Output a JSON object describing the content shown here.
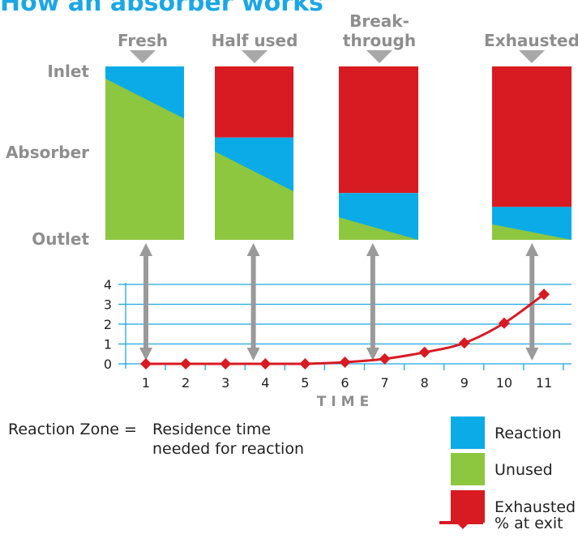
{
  "title": "How an absorber works",
  "stages": [
    {
      "label_lines": [
        "Fresh"
      ],
      "exhausted": 0,
      "reaction_left": 0.07,
      "reaction_right": 0.3
    },
    {
      "label_lines": [
        "Half used"
      ],
      "exhausted": 0.41,
      "reaction_left": 0.49,
      "reaction_right": 0.72
    },
    {
      "label_lines": [
        "Break-",
        "through"
      ],
      "exhausted": 0.73,
      "reaction_left": 0.87,
      "reaction_right": 1.0
    },
    {
      "label_lines": [
        "Exhausted"
      ],
      "exhausted": 0.81,
      "reaction_left": 0.91,
      "reaction_right": 1.0
    }
  ],
  "rows": {
    "inlet": "Inlet",
    "absorber": "Absorber",
    "outlet": "Outlet"
  },
  "colors": {
    "reaction": "#0aabe6",
    "unused": "#8dc63f",
    "exhausted": "#d81a22",
    "line": "#d81a22",
    "grid": "#1ba7e6",
    "arrow": "#9a9a9a",
    "title": "#1ba7e6"
  },
  "chart_data": {
    "type": "line",
    "x": [
      1,
      2,
      3,
      4,
      5,
      6,
      7,
      8,
      9,
      10,
      11
    ],
    "series": [
      {
        "name": "% at exit",
        "values": [
          0,
          0,
          0,
          0,
          0,
          0.08,
          0.25,
          0.58,
          1.05,
          2.05,
          3.5
        ]
      }
    ],
    "xlabel": "TIME",
    "ylabel": "",
    "x_ticks": [
      "1",
      "2",
      "3",
      "4",
      "5",
      "6",
      "7",
      "8",
      "9",
      "10",
      "11"
    ],
    "y_ticks": [
      "0",
      "1",
      "2",
      "3",
      "4"
    ],
    "ylim": [
      0,
      4
    ],
    "grid": true,
    "marker": "diamond",
    "arrows_to_time": [
      1,
      3.7,
      6.7,
      10.7
    ]
  },
  "caption": {
    "left": "Reaction Zone =",
    "right_line1": "Residence time",
    "right_line2": "needed for reaction"
  },
  "legend": [
    {
      "key": "reaction",
      "label": "Reaction"
    },
    {
      "key": "unused",
      "label": "Unused"
    },
    {
      "key": "exhausted",
      "label": "Exhausted"
    },
    {
      "key": "line",
      "label": "% at exit"
    }
  ]
}
